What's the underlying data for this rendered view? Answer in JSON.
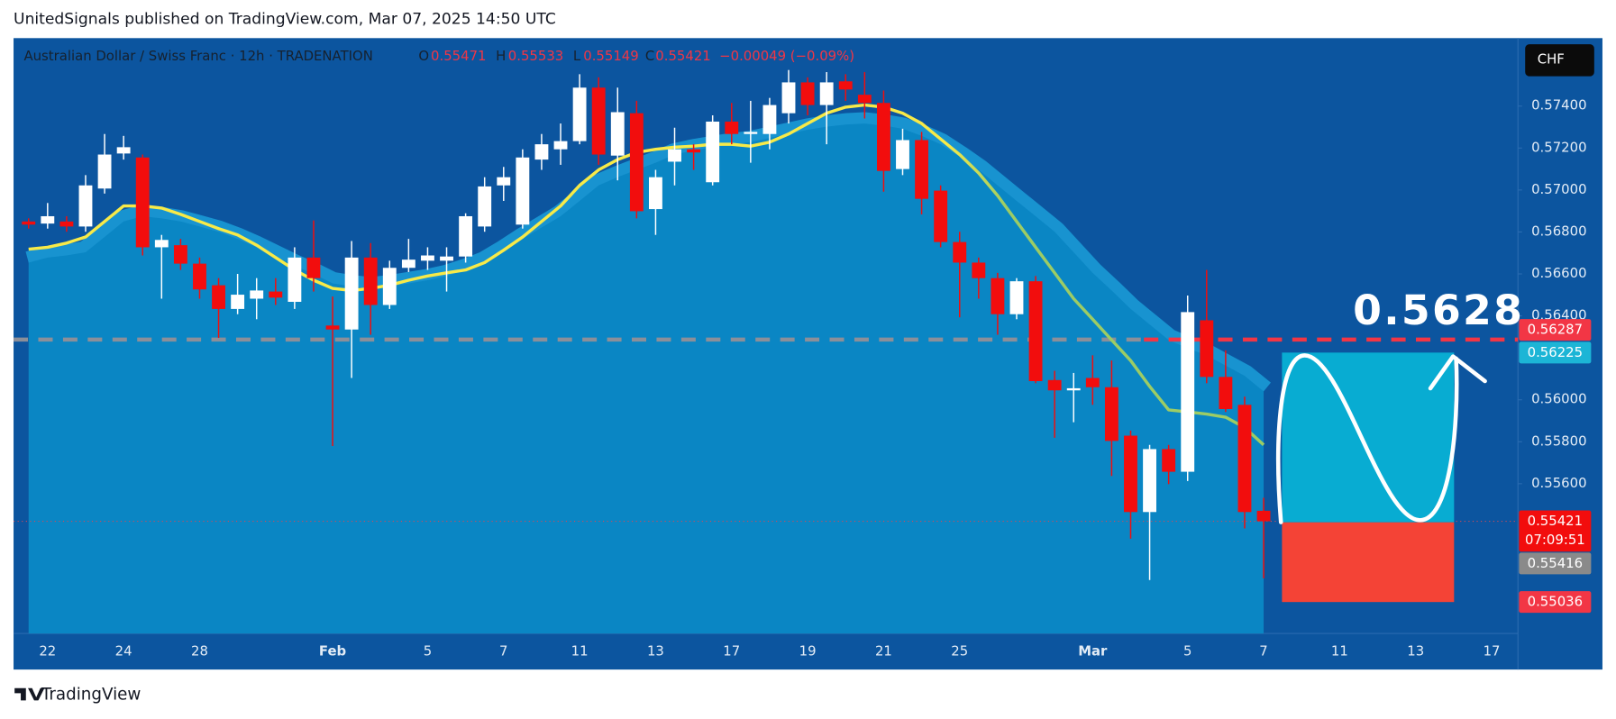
{
  "header": {
    "published": "UnitedSignals published on TradingView.com, Mar 07, 2025 14:50 UTC"
  },
  "chart_data": {
    "type": "candlestick",
    "symbol": "Australian Dollar / Swiss Franc · 12h · TRADENATION",
    "ohlc_legend": {
      "o_label": "O",
      "o": 0.55471,
      "h_label": "H",
      "h": 0.55533,
      "l_label": "L",
      "l": 0.55149,
      "c_label": "C",
      "c": 0.55421,
      "change": "−0.00049 (−0.09%)"
    },
    "currency": "CHF",
    "categories": [
      null,
      "22",
      null,
      null,
      null,
      "24",
      null,
      null,
      null,
      "28",
      null,
      null,
      null,
      null,
      null,
      null,
      "Feb",
      null,
      null,
      null,
      null,
      "5",
      null,
      null,
      null,
      "7",
      null,
      null,
      null,
      "11",
      null,
      null,
      null,
      "13",
      null,
      null,
      null,
      "17",
      null,
      null,
      null,
      "19",
      null,
      null,
      null,
      "21",
      null,
      null,
      null,
      "25",
      null,
      null,
      null,
      null,
      null,
      null,
      "Mar",
      null,
      null,
      null,
      null,
      "5",
      null,
      null,
      null,
      "7",
      null,
      null,
      null,
      "11",
      null,
      null,
      null,
      "13",
      null,
      null,
      null,
      "17"
    ],
    "open": [
      0.5685,
      0.5684,
      0.5685,
      0.56826,
      0.57007,
      0.57174,
      0.57155,
      0.56727,
      0.56737,
      0.56649,
      0.56546,
      0.56433,
      0.56482,
      0.56516,
      0.56467,
      0.56678,
      0.56354,
      0.56335,
      0.56678,
      0.56452,
      0.56629,
      0.56663,
      0.56663,
      0.56683,
      0.56826,
      0.57022,
      0.56835,
      0.57145,
      0.57194,
      0.57233,
      0.57488,
      0.57164,
      0.57366,
      0.56909,
      0.57135,
      0.57194,
      0.57037,
      0.57326,
      0.57267,
      0.57267,
      0.57366,
      0.57513,
      0.57405,
      0.57518,
      0.57454,
      0.57415,
      0.571,
      0.57238,
      0.56997,
      0.56752,
      0.56654,
      0.5658,
      0.56408,
      0.56565,
      0.56094,
      0.56045,
      0.56104,
      0.5606,
      0.55829,
      0.55465,
      0.55765,
      0.55657,
      0.56379,
      0.56109,
      0.55976,
      0.55471,
      null,
      null,
      null,
      null,
      null,
      null,
      null,
      null,
      null,
      null,
      null,
      null
    ],
    "high": [
      0.56865,
      0.56938,
      0.56875,
      0.57071,
      0.57267,
      0.57258,
      0.57169,
      0.56786,
      0.56767,
      0.56678,
      0.5658,
      0.566,
      0.5658,
      0.5658,
      0.56727,
      0.56855,
      0.56492,
      0.56757,
      0.56747,
      0.56663,
      0.56767,
      0.56727,
      0.56727,
      0.56889,
      0.57061,
      0.5711,
      0.57194,
      0.57267,
      0.57317,
      0.57552,
      0.57537,
      0.57488,
      0.57425,
      0.57096,
      0.57297,
      0.57218,
      0.57356,
      0.57415,
      0.57425,
      0.57439,
      0.57572,
      0.57537,
      0.57562,
      0.57552,
      0.57562,
      0.57474,
      0.57292,
      0.57277,
      0.57022,
      0.56801,
      0.56678,
      0.56605,
      0.5658,
      0.5659,
      0.56138,
      0.56128,
      0.56212,
      0.56187,
      0.55853,
      0.55785,
      0.55785,
      0.56497,
      0.56619,
      0.56236,
      0.56015,
      0.55533,
      null,
      null,
      null,
      null,
      null,
      null,
      null,
      null,
      null,
      null,
      null,
      null
    ],
    "low": [
      0.56816,
      0.56816,
      0.56801,
      0.56801,
      0.56983,
      0.57145,
      0.56688,
      0.56482,
      0.56619,
      0.56482,
      0.56295,
      0.56408,
      0.56384,
      0.56452,
      0.56433,
      0.56516,
      0.5578,
      0.56104,
      0.5631,
      0.56433,
      0.56609,
      0.56619,
      0.56516,
      0.56654,
      0.56801,
      0.56948,
      0.56816,
      0.57096,
      0.5712,
      0.57218,
      0.5712,
      0.57046,
      0.56865,
      0.56786,
      0.57022,
      0.57096,
      0.57022,
      0.57218,
      0.5713,
      0.57194,
      0.57317,
      0.57356,
      0.57218,
      0.57425,
      0.57341,
      0.56992,
      0.57071,
      0.56884,
      0.56727,
      0.56393,
      0.56482,
      0.5631,
      0.56384,
      0.56079,
      0.55819,
      0.55893,
      0.55976,
      0.55637,
      0.55338,
      0.55141,
      0.55598,
      0.55613,
      0.56079,
      0.55942,
      0.55387,
      0.55149,
      null,
      null,
      null,
      null,
      null,
      null,
      null,
      null,
      null,
      null,
      null,
      null
    ],
    "close": [
      0.56835,
      0.56875,
      0.56826,
      0.57022,
      0.57169,
      0.57204,
      0.56727,
      0.56762,
      0.56649,
      0.56526,
      0.56433,
      0.56501,
      0.56521,
      0.56487,
      0.56678,
      0.5658,
      0.56335,
      0.56678,
      0.56452,
      0.56629,
      0.56668,
      0.56688,
      0.56683,
      0.56875,
      0.57017,
      0.57061,
      0.57155,
      0.57218,
      0.57233,
      0.57488,
      0.57169,
      0.57371,
      0.56899,
      0.57061,
      0.57194,
      0.57179,
      0.57326,
      0.57267,
      0.57277,
      0.57405,
      0.57513,
      0.57405,
      0.57513,
      0.57479,
      0.57415,
      0.57091,
      0.57238,
      0.56958,
      0.56752,
      0.56654,
      0.5658,
      0.56408,
      0.56565,
      0.56089,
      0.56045,
      0.56055,
      0.5606,
      0.55804,
      0.55465,
      0.55765,
      0.55657,
      0.56418,
      0.56109,
      0.55956,
      0.55465,
      0.55421,
      null,
      null,
      null,
      null,
      null,
      null,
      null,
      null,
      null,
      null,
      null,
      null
    ],
    "up_color": "#ffffff",
    "down_color": "#f20d0d",
    "ma": {
      "color_start": "#f7ea48",
      "color_end": "#9ccc65",
      "values": [
        0.56718,
        0.56727,
        0.56747,
        0.56776,
        0.5685,
        0.56924,
        0.56924,
        0.56914,
        0.56884,
        0.5685,
        0.56816,
        0.56786,
        0.56737,
        0.56678,
        0.56619,
        0.5657,
        0.56531,
        0.56521,
        0.56531,
        0.56546,
        0.5657,
        0.5659,
        0.56605,
        0.56619,
        0.56654,
        0.56713,
        0.56776,
        0.5685,
        0.56924,
        0.57022,
        0.57096,
        0.57145,
        0.57179,
        0.57194,
        0.57204,
        0.57209,
        0.57218,
        0.57218,
        0.57209,
        0.57228,
        0.57267,
        0.57317,
        0.57366,
        0.57395,
        0.57405,
        0.57395,
        0.57366,
        0.57317,
        0.57243,
        0.57169,
        0.57081,
        0.56973,
        0.5685,
        0.56727,
        0.56605,
        0.56482,
        0.56384,
        0.56285,
        0.56187,
        0.56064,
        0.55952,
        0.55942,
        0.55932,
        0.55917,
        0.55868,
        0.55785,
        null,
        null,
        null,
        null,
        null,
        null,
        null,
        null,
        null,
        null,
        null,
        null
      ]
    },
    "cloud": {
      "color": "#0a86c4",
      "edge_color": "#1893d0",
      "values": [
        0.56654,
        0.56678,
        0.56688,
        0.56703,
        0.56776,
        0.5685,
        0.56875,
        0.56865,
        0.5685,
        0.56826,
        0.56801,
        0.56767,
        0.56727,
        0.56683,
        0.56639,
        0.566,
        0.56555,
        0.56541,
        0.56531,
        0.56541,
        0.56555,
        0.5657,
        0.5659,
        0.56619,
        0.56654,
        0.56708,
        0.56767,
        0.56821,
        0.56875,
        0.56948,
        0.57022,
        0.57061,
        0.57096,
        0.5713,
        0.57169,
        0.57189,
        0.57204,
        0.57218,
        0.57228,
        0.57248,
        0.57267,
        0.57287,
        0.57302,
        0.57312,
        0.57317,
        0.57307,
        0.57292,
        0.57258,
        0.57218,
        0.57159,
        0.57096,
        0.57022,
        0.56948,
        0.56875,
        0.56801,
        0.56703,
        0.56605,
        0.56521,
        0.56433,
        0.56359,
        0.56285,
        0.56246,
        0.56212,
        0.56163,
        0.56114,
        0.5604,
        null,
        null,
        null,
        null,
        null,
        null,
        null,
        null,
        null,
        null,
        null,
        null
      ]
    },
    "ylim": [
      0.54886,
      0.57724
    ],
    "yticks": [
      {
        "value": 0.574,
        "label": "0.57400"
      },
      {
        "value": 0.572,
        "label": "0.57200"
      },
      {
        "value": 0.57,
        "label": "0.57000"
      },
      {
        "value": 0.568,
        "label": "0.56800"
      },
      {
        "value": 0.566,
        "label": "0.56600"
      },
      {
        "value": 0.564,
        "label": "0.56400"
      },
      {
        "value": 0.56,
        "label": "0.56000"
      },
      {
        "value": 0.558,
        "label": "0.55800"
      },
      {
        "value": 0.556,
        "label": "0.55600"
      }
    ],
    "grid": false,
    "price_labels": [
      {
        "value": 0.56287,
        "color": "#f23645"
      },
      {
        "value": 0.56225,
        "color": "#1cb5d6"
      },
      {
        "value": 0.55421,
        "color": "#f20d0d",
        "countdown": "07:09:51"
      },
      {
        "value": 0.55416,
        "color": "#8a8a8a"
      },
      {
        "value": 0.55036,
        "color": "#f23645"
      }
    ],
    "annotation": "0.5628",
    "target_color": "#08acd2",
    "stop_color": "#f44336"
  },
  "footer": {
    "brand": "TradingView"
  }
}
